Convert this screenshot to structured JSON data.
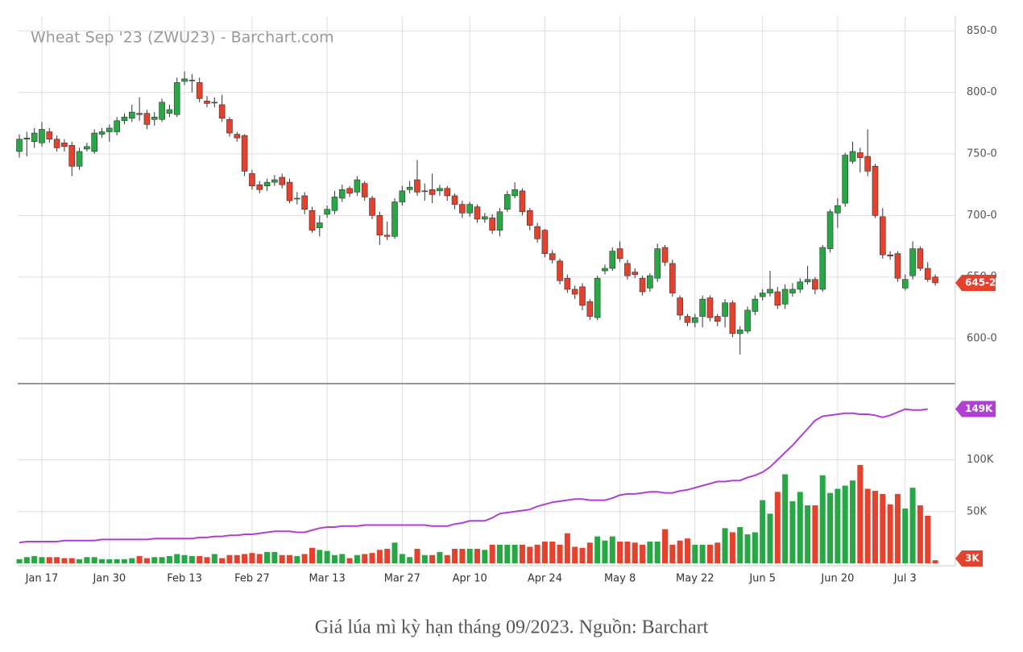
{
  "title": "Wheat Sep '23 (ZWU23) - Barchart.com",
  "caption": "Giá lúa mì kỳ hạn tháng 09/2023. Nguồn: Barchart",
  "chart_data": [
    {
      "type": "candlestick",
      "categories": [
        null,
        null,
        null,
        "Jan 17",
        null,
        null,
        null,
        null,
        null,
        null,
        null,
        null,
        "Jan 30",
        null,
        null,
        null,
        null,
        null,
        null,
        null,
        null,
        null,
        "Feb 13",
        null,
        null,
        null,
        null,
        null,
        null,
        null,
        null,
        "Feb 27",
        null,
        null,
        null,
        null,
        null,
        null,
        null,
        null,
        null,
        "Mar 13",
        null,
        null,
        null,
        null,
        null,
        null,
        null,
        null,
        null,
        "Mar 27",
        null,
        null,
        null,
        null,
        null,
        null,
        null,
        null,
        "Apr 10",
        null,
        null,
        null,
        null,
        null,
        null,
        null,
        null,
        null,
        "Apr 24",
        null,
        null,
        null,
        null,
        null,
        null,
        null,
        null,
        null,
        "May 8",
        null,
        null,
        null,
        null,
        null,
        null,
        null,
        null,
        null,
        "May 22",
        null,
        null,
        null,
        null,
        null,
        null,
        null,
        null,
        "Jun 5",
        null,
        null,
        null,
        null,
        null,
        null,
        null,
        null,
        null,
        "Jun 20",
        null,
        null,
        null,
        null,
        null,
        null,
        null,
        null,
        "Jul 3",
        null,
        null,
        null,
        null
      ],
      "open": [
        752,
        762,
        760,
        759,
        768,
        762,
        759,
        757,
        740,
        754,
        752,
        766,
        768,
        768,
        777,
        779,
        783,
        783,
        778,
        778,
        783,
        782,
        809,
        810,
        808,
        793,
        792,
        790,
        778,
        766,
        765,
        734,
        725,
        724,
        727,
        731,
        727,
        714,
        716,
        704,
        690,
        701,
        704,
        714,
        722,
        719,
        726,
        714,
        700,
        684,
        683,
        711,
        721,
        729,
        720,
        721,
        720,
        722,
        716,
        709,
        702,
        707,
        697,
        698,
        688,
        705,
        716,
        720,
        704,
        691,
        688,
        669,
        663,
        649,
        640,
        642,
        630,
        617,
        655,
        657,
        673,
        661,
        654,
        649,
        641,
        649,
        674,
        661,
        633,
        618,
        613,
        618,
        633,
        618,
        618,
        629,
        604,
        606,
        622,
        634,
        637,
        638,
        628,
        637,
        640,
        646,
        648,
        640,
        673,
        702,
        710,
        744,
        751,
        748,
        740,
        699,
        668,
        669,
        641,
        651,
        673,
        657,
        650
      ],
      "high": [
        766,
        768,
        771,
        776,
        771,
        765,
        762,
        760,
        755,
        759,
        770,
        771,
        774,
        780,
        783,
        790,
        796,
        786,
        784,
        795,
        790,
        812,
        817,
        815,
        812,
        797,
        796,
        798,
        780,
        768,
        766,
        737,
        728,
        730,
        733,
        734,
        730,
        719,
        719,
        707,
        700,
        708,
        720,
        725,
        724,
        732,
        728,
        716,
        703,
        695,
        714,
        724,
        728,
        745,
        726,
        734,
        725,
        724,
        718,
        712,
        711,
        709,
        702,
        701,
        706,
        720,
        727,
        722,
        706,
        694,
        689,
        672,
        665,
        652,
        643,
        645,
        632,
        651,
        660,
        674,
        679,
        664,
        657,
        651,
        653,
        677,
        676,
        664,
        635,
        620,
        620,
        635,
        635,
        620,
        632,
        631,
        610,
        626,
        635,
        640,
        655,
        642,
        644,
        645,
        649,
        659,
        650,
        676,
        705,
        714,
        751,
        760,
        755,
        770,
        742,
        706,
        671,
        671,
        652,
        679,
        675,
        662,
        652
      ],
      "low": [
        747,
        748,
        755,
        756,
        759,
        752,
        752,
        732,
        737,
        752,
        750,
        763,
        760,
        765,
        774,
        776,
        777,
        770,
        773,
        776,
        780,
        780,
        806,
        800,
        792,
        788,
        788,
        776,
        764,
        760,
        732,
        721,
        718,
        720,
        724,
        722,
        710,
        709,
        701,
        686,
        683,
        698,
        701,
        711,
        715,
        716,
        712,
        697,
        676,
        680,
        681,
        708,
        718,
        716,
        712,
        710,
        716,
        712,
        705,
        698,
        699,
        694,
        694,
        685,
        683,
        703,
        714,
        700,
        688,
        678,
        666,
        661,
        644,
        637,
        632,
        623,
        615,
        615,
        652,
        655,
        662,
        648,
        649,
        635,
        638,
        646,
        659,
        634,
        615,
        610,
        609,
        609,
        614,
        610,
        609,
        601,
        587,
        604,
        619,
        631,
        634,
        624,
        624,
        634,
        637,
        644,
        636,
        638,
        670,
        690,
        707,
        742,
        735,
        732,
        698,
        665,
        664,
        646,
        639,
        648,
        655,
        646,
        643
      ],
      "close": [
        762,
        763,
        767,
        770,
        762,
        755,
        756,
        740,
        752,
        756,
        767,
        768,
        771,
        777,
        780,
        784,
        782,
        774,
        780,
        792,
        786,
        808,
        811,
        810,
        795,
        791,
        792,
        779,
        767,
        763,
        736,
        724,
        721,
        727,
        729,
        725,
        712,
        714,
        705,
        688,
        694,
        705,
        715,
        721,
        718,
        729,
        715,
        700,
        684,
        683,
        711,
        720,
        723,
        719,
        720,
        717,
        722,
        716,
        709,
        702,
        709,
        697,
        699,
        688,
        703,
        717,
        721,
        703,
        692,
        681,
        669,
        664,
        647,
        640,
        636,
        627,
        618,
        649,
        657,
        671,
        665,
        651,
        652,
        638,
        651,
        673,
        662,
        637,
        619,
        613,
        617,
        632,
        617,
        614,
        629,
        604,
        607,
        623,
        632,
        637,
        640,
        627,
        640,
        640,
        646,
        648,
        640,
        674,
        703,
        708,
        749,
        752,
        747,
        736,
        700,
        668,
        667,
        649,
        648,
        673,
        657,
        648,
        645.25
      ],
      "up_color": "#27a845",
      "down_color": "#e5412d",
      "ylim": [
        564,
        862
      ],
      "yticks": [
        {
          "value": 600,
          "label": "600-0"
        },
        {
          "value": 650,
          "label": "650-0"
        },
        {
          "value": 700,
          "label": "700-0"
        },
        {
          "value": 750,
          "label": "750-0"
        },
        {
          "value": 800,
          "label": "800-0"
        },
        {
          "value": 850,
          "label": "850-0"
        }
      ],
      "grid": true,
      "last_label": "645-2"
    },
    {
      "type": "volume",
      "values": [
        4000,
        6000,
        7000,
        6000,
        6000,
        6000,
        5000,
        5000,
        4000,
        6000,
        6000,
        4000,
        4000,
        4000,
        4000,
        5000,
        7000,
        5000,
        6000,
        6000,
        7000,
        9000,
        8000,
        7000,
        7000,
        6000,
        9000,
        5000,
        8000,
        8000,
        9000,
        10000,
        9000,
        11000,
        11000,
        8000,
        8000,
        7000,
        9000,
        15000,
        13000,
        12000,
        8000,
        9000,
        5000,
        8000,
        9000,
        10000,
        13000,
        14000,
        20000,
        9000,
        6000,
        14000,
        8000,
        8000,
        11000,
        8000,
        14000,
        14000,
        14000,
        14000,
        13000,
        18000,
        18000,
        18000,
        18000,
        18000,
        16000,
        18000,
        21000,
        21000,
        18000,
        29000,
        16000,
        15000,
        20000,
        26000,
        22000,
        26000,
        21000,
        21000,
        20000,
        18000,
        21000,
        21000,
        33000,
        18000,
        22000,
        24000,
        18000,
        18000,
        18000,
        20000,
        34000,
        30000,
        35000,
        28000,
        30000,
        61000,
        48000,
        69000,
        86000,
        60000,
        69000,
        56000,
        56000,
        85000,
        68000,
        72000,
        75000,
        80000,
        95000,
        72000,
        70000,
        67000,
        57000,
        67000,
        53000,
        73000,
        56000,
        46000,
        3000
      ],
      "open_interest": [
        20000,
        21000,
        21000,
        21000,
        21000,
        21000,
        22000,
        22000,
        22000,
        22000,
        22000,
        23000,
        23000,
        23000,
        23000,
        23000,
        23000,
        23000,
        24000,
        24000,
        24000,
        24000,
        24000,
        24000,
        25000,
        25000,
        26000,
        26000,
        27000,
        27000,
        28000,
        28000,
        29000,
        30000,
        31000,
        31000,
        31000,
        30000,
        30000,
        32000,
        34000,
        35000,
        35000,
        36000,
        36000,
        36000,
        37000,
        37000,
        37000,
        37000,
        37000,
        37000,
        37000,
        37000,
        37000,
        36000,
        36000,
        36000,
        38000,
        39000,
        41000,
        41000,
        41000,
        44000,
        48000,
        49000,
        50000,
        51000,
        52000,
        55000,
        57000,
        59000,
        60000,
        61000,
        62000,
        62000,
        61000,
        61000,
        61000,
        63000,
        66000,
        67000,
        67000,
        68000,
        69000,
        69000,
        68000,
        68000,
        70000,
        71000,
        73000,
        75000,
        77000,
        79000,
        79000,
        80000,
        80000,
        83000,
        85000,
        88000,
        93000,
        100000,
        107000,
        114000,
        122000,
        130000,
        138000,
        142000,
        143000,
        144000,
        145000,
        145000,
        144000,
        144000,
        143000,
        141000,
        143000,
        146000,
        149000,
        148000,
        148000,
        149000,
        null
      ],
      "oi_color": "#b13fd3",
      "ylim": [
        0,
        172000
      ],
      "yticks": [
        {
          "value": 50000,
          "label": "50K"
        },
        {
          "value": 100000,
          "label": "100K"
        }
      ],
      "grid": true,
      "last_label": "3K",
      "oi_last_label": "149K"
    }
  ]
}
